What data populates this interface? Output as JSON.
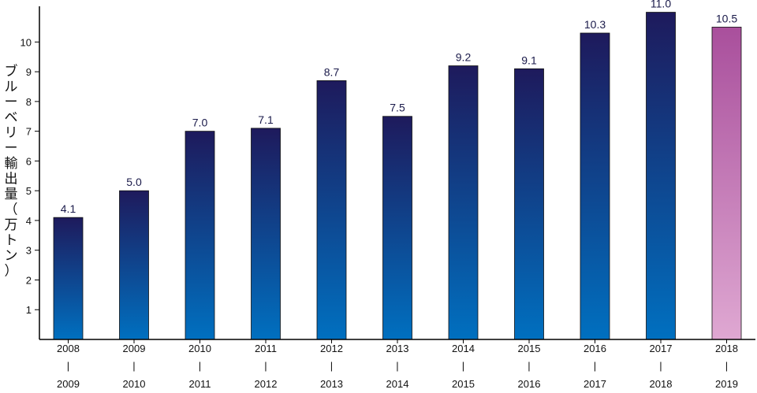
{
  "chart_data": {
    "type": "bar",
    "ylabel_chars": [
      "ブ",
      "ル",
      "ー",
      "ベ",
      "リ",
      "ー",
      "輸",
      "出",
      "量",
      "（",
      "万",
      "ト",
      "ン",
      "）"
    ],
    "ylabel": "ブルーベリー輸出量（万トン）",
    "categories": [
      {
        "top": "2008",
        "sep": "|",
        "bottom": "2009"
      },
      {
        "top": "2009",
        "sep": "|",
        "bottom": "2010"
      },
      {
        "top": "2010",
        "sep": "|",
        "bottom": "2011"
      },
      {
        "top": "2011",
        "sep": "|",
        "bottom": "2012"
      },
      {
        "top": "2012",
        "sep": "|",
        "bottom": "2013"
      },
      {
        "top": "2013",
        "sep": "|",
        "bottom": "2014"
      },
      {
        "top": "2014",
        "sep": "|",
        "bottom": "2015"
      },
      {
        "top": "2015",
        "sep": "|",
        "bottom": "2016"
      },
      {
        "top": "2016",
        "sep": "|",
        "bottom": "2017"
      },
      {
        "top": "2017",
        "sep": "|",
        "bottom": "2018"
      },
      {
        "top": "2018",
        "sep": "|",
        "bottom": "2019"
      }
    ],
    "values": [
      4.1,
      5.0,
      7.0,
      7.1,
      8.7,
      7.5,
      9.2,
      9.1,
      10.3,
      11.0,
      10.5
    ],
    "value_labels": [
      "4.1",
      "5.0",
      "7.0",
      "7.1",
      "8.7",
      "7.5",
      "9.2",
      "9.1",
      "10.3",
      "11.0",
      "10.5"
    ],
    "highlight_index": 10,
    "ylim": [
      0,
      11.2
    ],
    "yticks": [
      "1",
      "2",
      "3",
      "4",
      "5",
      "6",
      "7",
      "8",
      "9",
      "10"
    ],
    "grid": false,
    "colors": {
      "bar_top": "#1e1a5c",
      "bar_bottom": "#0070c0",
      "highlight_top": "#a94f9c",
      "highlight_bottom": "#dfa8d2",
      "axis": "#000000"
    }
  }
}
